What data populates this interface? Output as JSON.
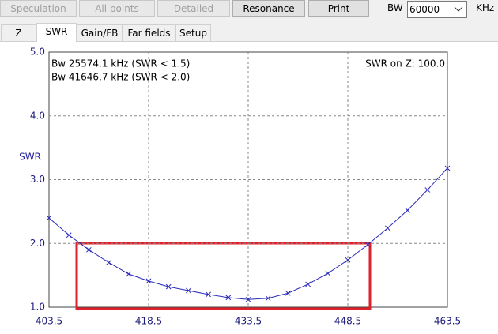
{
  "toolbar": {
    "buttons": [
      {
        "label": "Speculation",
        "enabled": false
      },
      {
        "label": "All points",
        "enabled": false
      },
      {
        "label": "Detailed",
        "enabled": false
      },
      {
        "label": "Resonance",
        "enabled": true
      },
      {
        "label": "Print",
        "enabled": true
      }
    ],
    "bw_label": "BW",
    "bw_value": "60000",
    "bw_unit": "KHz"
  },
  "tabs": {
    "items": [
      "Z",
      "SWR",
      "Gain/FB",
      "Far fields",
      "Setup"
    ],
    "selected": 1
  },
  "chart_data": {
    "type": "line",
    "ylabel": "SWR",
    "annotations": [
      "Bw 25574.1 kHz (SWR < 1.5)",
      "Bw 41646.7 kHz (SWR < 2.0)",
      "SWR on Z: 100.0"
    ],
    "x": [
      403.5,
      406.5,
      409.5,
      412.5,
      415.5,
      418.5,
      421.5,
      424.5,
      427.5,
      430.5,
      433.5,
      436.5,
      439.5,
      442.5,
      445.5,
      448.5,
      451.5,
      454.5,
      457.5,
      460.5,
      463.5
    ],
    "series": [
      {
        "color": "#2a2ab8",
        "values": [
          2.4,
          2.13,
          1.9,
          1.7,
          1.52,
          1.41,
          1.32,
          1.26,
          1.2,
          1.15,
          1.12,
          1.14,
          1.22,
          1.36,
          1.53,
          1.74,
          1.98,
          2.24,
          2.52,
          2.84,
          3.18
        ]
      }
    ],
    "xlim": [
      403.5,
      463.5
    ],
    "xticks": [
      403.5,
      418.5,
      433.5,
      448.5,
      463.5
    ],
    "ylim": [
      1,
      5
    ],
    "yticks": [
      {
        "value": 1,
        "label": "1.0"
      },
      {
        "value": 2,
        "label": "2.0"
      },
      {
        "value": 3,
        "label": "3.0"
      },
      {
        "value": 4,
        "label": "4.0"
      },
      {
        "value": 5,
        "label": "5.0"
      }
    ],
    "grid": true
  }
}
